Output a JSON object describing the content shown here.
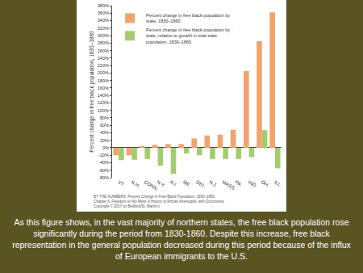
{
  "chart_data": {
    "type": "bar",
    "categories": [
      "VT.",
      "N.H.",
      "CONN.",
      "N.Y.",
      "R.I.",
      "ME.",
      "DEL.",
      "N.J.",
      "MASS.",
      "PA.",
      "IND.",
      "OH.",
      "ILL."
    ],
    "series": [
      {
        "name": "Percent change in free black population by state, 1830–1860",
        "color": "#f2a36c",
        "values": [
          -20,
          -20,
          5,
          8,
          10,
          10,
          25,
          33,
          35,
          48,
          205,
          285,
          362
        ]
      },
      {
        "name": "Percent change in free black population by state, relative to growth in total state population, 1830–1860",
        "color": "#a3cd6d",
        "values": [
          -33,
          -32,
          -30,
          -48,
          -70,
          -15,
          -20,
          -30,
          -30,
          -30,
          -25,
          47,
          -55
        ]
      }
    ],
    "y_label": "Percent change in free black population, 1830–1860",
    "ylim": [
      -80,
      380
    ],
    "yticks": [
      {
        "value": -80,
        "label": "-80%"
      },
      {
        "value": -60,
        "label": "-60%"
      },
      {
        "value": -40,
        "label": "-40%"
      },
      {
        "value": -20,
        "label": "-20%"
      },
      {
        "value": 0,
        "label": "0%"
      },
      {
        "value": 20,
        "label": "20%"
      },
      {
        "value": 40,
        "label": "40%"
      },
      {
        "value": 60,
        "label": "60%"
      },
      {
        "value": 80,
        "label": "80%"
      },
      {
        "value": 100,
        "label": "100%"
      },
      {
        "value": 120,
        "label": "120%"
      },
      {
        "value": 140,
        "label": "140%"
      },
      {
        "value": 160,
        "label": "160%"
      },
      {
        "value": 180,
        "label": "180%"
      },
      {
        "value": 200,
        "label": "200%"
      },
      {
        "value": 220,
        "label": "220%"
      },
      {
        "value": 240,
        "label": "240%"
      },
      {
        "value": 260,
        "label": "260%"
      },
      {
        "value": 280,
        "label": "280%"
      },
      {
        "value": 300,
        "label": "300%"
      },
      {
        "value": 320,
        "label": "320%"
      },
      {
        "value": 340,
        "label": "340%"
      },
      {
        "value": 360,
        "label": "360%"
      },
      {
        "value": 380,
        "label": "380%"
      }
    ],
    "grid": false,
    "legend": "upper left",
    "source_lines": [
      "BY THE NUMBERS  Percent Change in Free Black Population, 1830–1860",
      "Chapter 6, Freedom on My Mind: A History of African Americans, with Documents",
      "Copyright © 2017 by Bedford/St. Martin's"
    ]
  },
  "caption": "As this figure shows, in the vast majority of northern states, the free black population rose significantly during the period from 1830-1860.  Despite this increase, free black representation in the general population decreased during this period because of the influx of European immigrants to the U.S."
}
